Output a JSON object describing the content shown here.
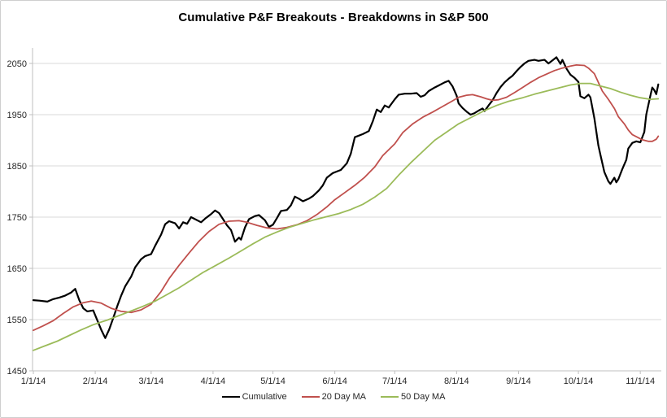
{
  "chart": {
    "title": "Cumulative P&F Breakouts - Breakdowns in S&P 500",
    "colors": {
      "grid": "#d9d9d9",
      "axis": "#bfbfbf",
      "tick_text": "#262626",
      "background": "#ffffff"
    }
  },
  "chart_data": {
    "type": "line",
    "title": "Cumulative P&F Breakouts - Breakdowns in S&P 500",
    "grid": true,
    "legend_position": "bottom",
    "x_axis": {
      "type": "date",
      "tick_labels": [
        "1/1/14",
        "2/1/14",
        "3/1/14",
        "4/1/14",
        "5/1/14",
        "6/1/14",
        "7/1/14",
        "8/1/14",
        "9/1/14",
        "10/1/14",
        "11/1/14"
      ]
    },
    "y_axis": {
      "min": 1450,
      "max": 2050,
      "major_step": 100,
      "tick_labels": [
        "1450",
        "1550",
        "1650",
        "1750",
        "1850",
        "1950",
        "2050"
      ]
    },
    "series": [
      {
        "name": "Cumulative",
        "color": "#000000",
        "width": 2.2,
        "points": [
          [
            "1/1/14",
            1588
          ],
          [
            "1/4/14",
            1587
          ],
          [
            "1/8/14",
            1585
          ],
          [
            "1/11/14",
            1590
          ],
          [
            "1/14/14",
            1593
          ],
          [
            "1/17/14",
            1597
          ],
          [
            "1/20/14",
            1603
          ],
          [
            "1/22/14",
            1610
          ],
          [
            "1/24/14",
            1588
          ],
          [
            "1/26/14",
            1572
          ],
          [
            "1/28/14",
            1566
          ],
          [
            "1/31/14",
            1568
          ],
          [
            "2/2/14",
            1549
          ],
          [
            "2/4/14",
            1530
          ],
          [
            "2/6/14",
            1514
          ],
          [
            "2/8/14",
            1531
          ],
          [
            "2/10/14",
            1553
          ],
          [
            "2/12/14",
            1576
          ],
          [
            "2/14/14",
            1597
          ],
          [
            "2/16/14",
            1615
          ],
          [
            "2/19/14",
            1634
          ],
          [
            "2/21/14",
            1652
          ],
          [
            "2/24/14",
            1668
          ],
          [
            "2/26/14",
            1674
          ],
          [
            "3/1/14",
            1678
          ],
          [
            "3/3/14",
            1694
          ],
          [
            "3/6/14",
            1716
          ],
          [
            "3/8/14",
            1736
          ],
          [
            "3/10/14",
            1742
          ],
          [
            "3/13/14",
            1738
          ],
          [
            "3/15/14",
            1728
          ],
          [
            "3/17/14",
            1740
          ],
          [
            "3/19/14",
            1737
          ],
          [
            "3/21/14",
            1750
          ],
          [
            "3/23/14",
            1746
          ],
          [
            "3/26/14",
            1740
          ],
          [
            "3/28/14",
            1747
          ],
          [
            "3/31/14",
            1756
          ],
          [
            "4/2/14",
            1763
          ],
          [
            "4/4/14",
            1758
          ],
          [
            "4/6/14",
            1746
          ],
          [
            "4/8/14",
            1734
          ],
          [
            "4/10/14",
            1725
          ],
          [
            "4/12/14",
            1702
          ],
          [
            "4/14/14",
            1710
          ],
          [
            "4/15/14",
            1706
          ],
          [
            "4/17/14",
            1730
          ],
          [
            "4/19/14",
            1746
          ],
          [
            "4/22/14",
            1752
          ],
          [
            "4/24/14",
            1754
          ],
          [
            "4/27/14",
            1744
          ],
          [
            "4/29/14",
            1731
          ],
          [
            "5/1/14",
            1735
          ],
          [
            "5/3/14",
            1748
          ],
          [
            "5/5/14",
            1762
          ],
          [
            "5/8/14",
            1764
          ],
          [
            "5/10/14",
            1773
          ],
          [
            "5/12/14",
            1790
          ],
          [
            "5/14/14",
            1786
          ],
          [
            "5/16/14",
            1781
          ],
          [
            "5/19/14",
            1786
          ],
          [
            "5/21/14",
            1791
          ],
          [
            "5/24/14",
            1802
          ],
          [
            "5/26/14",
            1812
          ],
          [
            "5/28/14",
            1827
          ],
          [
            "5/31/14",
            1836
          ],
          [
            "6/2/14",
            1839
          ],
          [
            "6/4/14",
            1842
          ],
          [
            "6/7/14",
            1855
          ],
          [
            "6/9/14",
            1874
          ],
          [
            "6/11/14",
            1906
          ],
          [
            "6/13/14",
            1909
          ],
          [
            "6/15/14",
            1912
          ],
          [
            "6/18/14",
            1918
          ],
          [
            "6/20/14",
            1937
          ],
          [
            "6/22/14",
            1960
          ],
          [
            "6/24/14",
            1955
          ],
          [
            "6/26/14",
            1968
          ],
          [
            "6/28/14",
            1964
          ],
          [
            "7/1/14",
            1980
          ],
          [
            "7/3/14",
            1989
          ],
          [
            "7/6/14",
            1991
          ],
          [
            "7/9/14",
            1991
          ],
          [
            "7/12/14",
            1992
          ],
          [
            "7/14/14",
            1985
          ],
          [
            "7/16/14",
            1988
          ],
          [
            "7/18/14",
            1996
          ],
          [
            "7/21/14",
            2003
          ],
          [
            "7/23/14",
            2007
          ],
          [
            "7/26/14",
            2013
          ],
          [
            "7/28/14",
            2016
          ],
          [
            "7/30/14",
            2005
          ],
          [
            "8/1/14",
            1987
          ],
          [
            "8/2/14",
            1972
          ],
          [
            "8/4/14",
            1963
          ],
          [
            "8/6/14",
            1956
          ],
          [
            "8/8/14",
            1950
          ],
          [
            "8/10/14",
            1953
          ],
          [
            "8/12/14",
            1958
          ],
          [
            "8/14/14",
            1962
          ],
          [
            "8/15/14",
            1957
          ],
          [
            "8/17/14",
            1968
          ],
          [
            "8/19/14",
            1978
          ],
          [
            "8/21/14",
            1992
          ],
          [
            "8/23/14",
            2004
          ],
          [
            "8/25/14",
            2013
          ],
          [
            "8/27/14",
            2020
          ],
          [
            "8/29/14",
            2026
          ],
          [
            "8/31/14",
            2035
          ],
          [
            "9/2/14",
            2043
          ],
          [
            "9/4/14",
            2050
          ],
          [
            "9/6/14",
            2055
          ],
          [
            "9/9/14",
            2057
          ],
          [
            "9/11/14",
            2055
          ],
          [
            "9/14/14",
            2057
          ],
          [
            "9/16/14",
            2050
          ],
          [
            "9/18/14",
            2056
          ],
          [
            "9/20/14",
            2062
          ],
          [
            "9/22/14",
            2049
          ],
          [
            "9/23/14",
            2057
          ],
          [
            "9/25/14",
            2040
          ],
          [
            "9/27/14",
            2028
          ],
          [
            "9/29/14",
            2022
          ],
          [
            "10/1/14",
            2014
          ],
          [
            "10/2/14",
            1986
          ],
          [
            "10/4/14",
            1982
          ],
          [
            "10/6/14",
            1989
          ],
          [
            "10/7/14",
            1984
          ],
          [
            "10/9/14",
            1943
          ],
          [
            "10/11/14",
            1890
          ],
          [
            "10/12/14",
            1872
          ],
          [
            "10/14/14",
            1838
          ],
          [
            "10/16/14",
            1820
          ],
          [
            "10/17/14",
            1815
          ],
          [
            "10/19/14",
            1827
          ],
          [
            "10/20/14",
            1818
          ],
          [
            "10/21/14",
            1824
          ],
          [
            "10/23/14",
            1844
          ],
          [
            "10/25/14",
            1862
          ],
          [
            "10/26/14",
            1884
          ],
          [
            "10/28/14",
            1895
          ],
          [
            "10/30/14",
            1898
          ],
          [
            "11/1/14",
            1896
          ],
          [
            "11/3/14",
            1916
          ],
          [
            "11/4/14",
            1950
          ],
          [
            "11/6/14",
            1986
          ],
          [
            "11/7/14",
            2003
          ],
          [
            "11/8/14",
            1998
          ],
          [
            "11/9/14",
            1990
          ],
          [
            "11/10/14",
            2009
          ]
        ]
      },
      {
        "name": "20 Day MA",
        "color": "#c0504d",
        "width": 1.8,
        "points": [
          [
            "1/1/14",
            1529
          ],
          [
            "1/6/14",
            1538
          ],
          [
            "1/11/14",
            1548
          ],
          [
            "1/16/14",
            1562
          ],
          [
            "1/21/14",
            1575
          ],
          [
            "1/26/14",
            1583
          ],
          [
            "1/30/14",
            1586
          ],
          [
            "2/4/14",
            1582
          ],
          [
            "2/9/14",
            1572
          ],
          [
            "2/14/14",
            1566
          ],
          [
            "2/19/14",
            1564
          ],
          [
            "2/24/14",
            1569
          ],
          [
            "3/1/14",
            1580
          ],
          [
            "3/6/14",
            1605
          ],
          [
            "3/10/14",
            1630
          ],
          [
            "3/15/14",
            1656
          ],
          [
            "3/20/14",
            1680
          ],
          [
            "3/25/14",
            1703
          ],
          [
            "3/30/14",
            1722
          ],
          [
            "4/4/14",
            1736
          ],
          [
            "4/9/14",
            1742
          ],
          [
            "4/14/14",
            1743
          ],
          [
            "4/18/14",
            1740
          ],
          [
            "4/23/14",
            1734
          ],
          [
            "4/28/14",
            1729
          ],
          [
            "5/3/14",
            1727
          ],
          [
            "5/8/14",
            1730
          ],
          [
            "5/13/14",
            1735
          ],
          [
            "5/18/14",
            1743
          ],
          [
            "5/23/14",
            1755
          ],
          [
            "5/28/14",
            1770
          ],
          [
            "6/1/14",
            1784
          ],
          [
            "6/6/14",
            1798
          ],
          [
            "6/11/14",
            1812
          ],
          [
            "6/16/14",
            1828
          ],
          [
            "6/21/14",
            1848
          ],
          [
            "6/25/14",
            1870
          ],
          [
            "7/1/14",
            1893
          ],
          [
            "7/5/14",
            1915
          ],
          [
            "7/10/14",
            1932
          ],
          [
            "7/15/14",
            1945
          ],
          [
            "7/20/14",
            1955
          ],
          [
            "7/25/14",
            1966
          ],
          [
            "7/30/14",
            1977
          ],
          [
            "8/2/14",
            1984
          ],
          [
            "8/6/14",
            1988
          ],
          [
            "8/9/14",
            1989
          ],
          [
            "8/13/14",
            1985
          ],
          [
            "8/16/14",
            1981
          ],
          [
            "8/19/14",
            1978
          ],
          [
            "8/22/14",
            1979
          ],
          [
            "8/26/14",
            1984
          ],
          [
            "8/30/14",
            1993
          ],
          [
            "9/3/14",
            2003
          ],
          [
            "9/7/14",
            2013
          ],
          [
            "9/11/14",
            2022
          ],
          [
            "9/15/14",
            2029
          ],
          [
            "9/19/14",
            2036
          ],
          [
            "9/23/14",
            2041
          ],
          [
            "9/27/14",
            2045
          ],
          [
            "9/30/14",
            2047
          ],
          [
            "10/4/14",
            2046
          ],
          [
            "10/6/14",
            2041
          ],
          [
            "10/9/14",
            2030
          ],
          [
            "10/11/14",
            2013
          ],
          [
            "10/13/14",
            1996
          ],
          [
            "10/16/14",
            1980
          ],
          [
            "10/19/14",
            1962
          ],
          [
            "10/21/14",
            1946
          ],
          [
            "10/24/14",
            1932
          ],
          [
            "10/26/14",
            1920
          ],
          [
            "10/28/14",
            1911
          ],
          [
            "10/31/14",
            1905
          ],
          [
            "11/2/14",
            1901
          ],
          [
            "11/5/14",
            1898
          ],
          [
            "11/7/14",
            1898
          ],
          [
            "11/9/14",
            1902
          ],
          [
            "11/10/14",
            1908
          ]
        ]
      },
      {
        "name": "50 Day MA",
        "color": "#9bbb59",
        "width": 1.8,
        "points": [
          [
            "1/1/14",
            1490
          ],
          [
            "1/7/14",
            1499
          ],
          [
            "1/13/14",
            1508
          ],
          [
            "1/19/14",
            1519
          ],
          [
            "1/25/14",
            1530
          ],
          [
            "1/31/14",
            1540
          ],
          [
            "2/7/14",
            1549
          ],
          [
            "2/13/14",
            1558
          ],
          [
            "2/19/14",
            1567
          ],
          [
            "2/25/14",
            1576
          ],
          [
            "3/3/14",
            1586
          ],
          [
            "3/9/14",
            1599
          ],
          [
            "3/15/14",
            1612
          ],
          [
            "3/21/14",
            1627
          ],
          [
            "3/27/14",
            1642
          ],
          [
            "4/3/14",
            1657
          ],
          [
            "4/9/14",
            1670
          ],
          [
            "4/15/14",
            1684
          ],
          [
            "4/21/14",
            1698
          ],
          [
            "4/27/14",
            1711
          ],
          [
            "5/3/14",
            1721
          ],
          [
            "5/9/14",
            1730
          ],
          [
            "5/15/14",
            1737
          ],
          [
            "5/21/14",
            1744
          ],
          [
            "5/28/14",
            1751
          ],
          [
            "6/3/14",
            1757
          ],
          [
            "6/9/14",
            1765
          ],
          [
            "6/15/14",
            1775
          ],
          [
            "6/21/14",
            1789
          ],
          [
            "6/27/14",
            1806
          ],
          [
            "7/3/14",
            1832
          ],
          [
            "7/9/14",
            1856
          ],
          [
            "7/15/14",
            1878
          ],
          [
            "7/21/14",
            1900
          ],
          [
            "7/27/14",
            1916
          ],
          [
            "8/2/14",
            1932
          ],
          [
            "8/9/14",
            1946
          ],
          [
            "8/15/14",
            1958
          ],
          [
            "8/21/14",
            1968
          ],
          [
            "8/27/14",
            1976
          ],
          [
            "9/3/14",
            1983
          ],
          [
            "9/9/14",
            1990
          ],
          [
            "9/15/14",
            1996
          ],
          [
            "9/21/14",
            2002
          ],
          [
            "9/27/14",
            2008
          ],
          [
            "10/2/14",
            2011
          ],
          [
            "10/7/14",
            2011
          ],
          [
            "10/12/14",
            2006
          ],
          [
            "10/17/14",
            2001
          ],
          [
            "10/22/14",
            1994
          ],
          [
            "10/27/14",
            1988
          ],
          [
            "11/1/14",
            1983
          ],
          [
            "11/6/14",
            1980
          ],
          [
            "11/10/14",
            1981
          ]
        ]
      }
    ]
  }
}
